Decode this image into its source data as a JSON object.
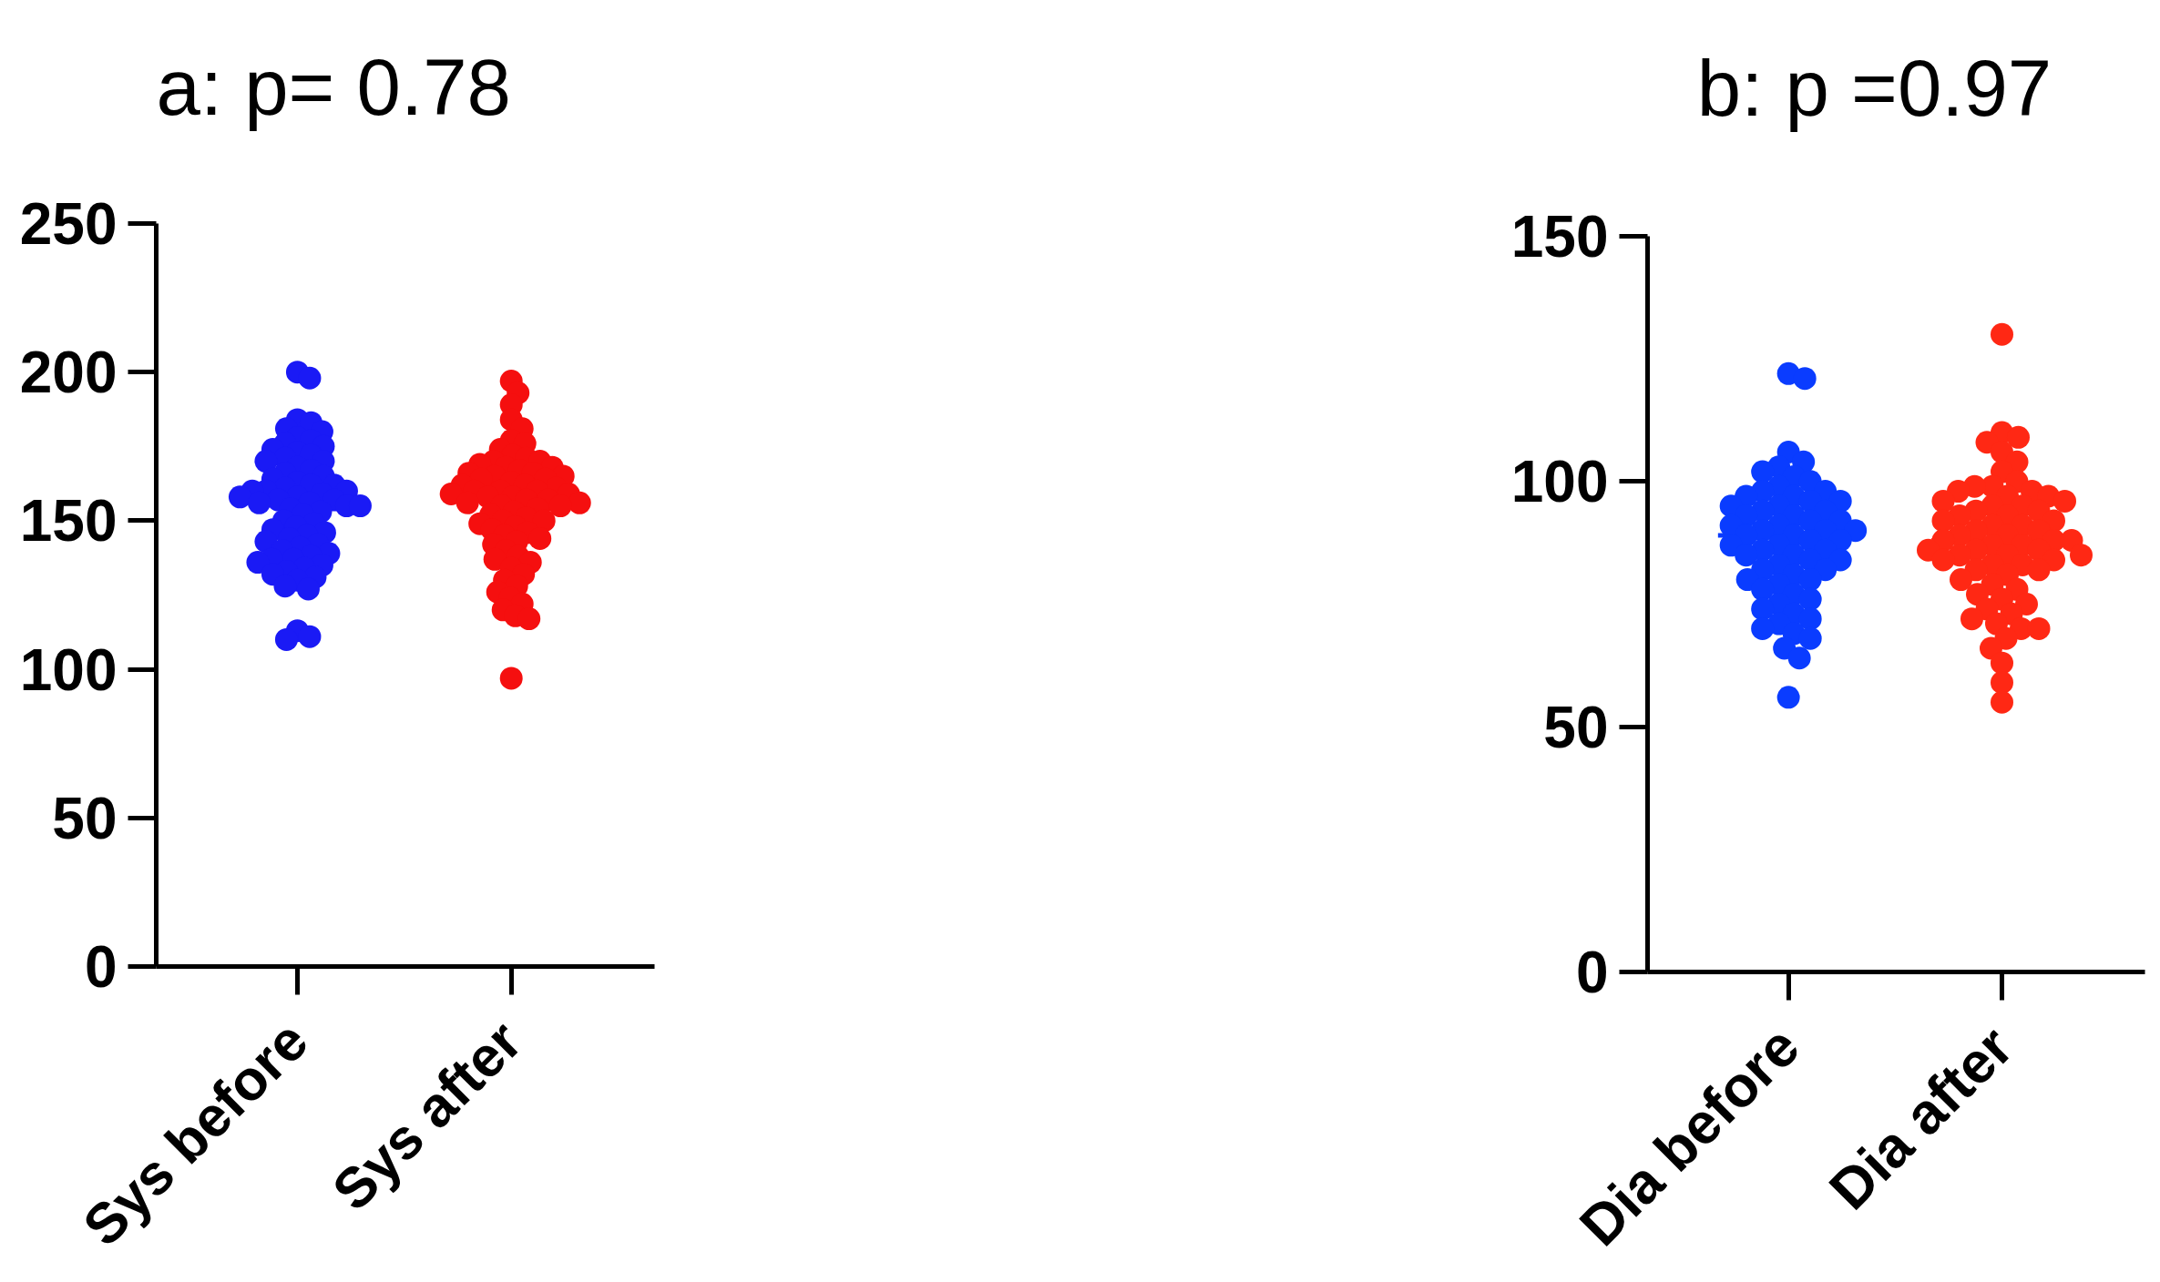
{
  "chart_data": [
    {
      "type": "scatter",
      "title": "a: p= 0.78",
      "categories": [
        "Sys before",
        "Sys after"
      ],
      "ylim": [
        0,
        250
      ],
      "yticks": [
        0,
        50,
        100,
        150,
        200,
        250
      ],
      "grid": false,
      "marker": "circle",
      "series": [
        {
          "color": "#1a1af5",
          "x": [
            "Sys before",
            "Sys before",
            "Sys before",
            "Sys before",
            "Sys before",
            "Sys before",
            "Sys before",
            "Sys before",
            "Sys before",
            "Sys before",
            "Sys before",
            "Sys before",
            "Sys before",
            "Sys before",
            "Sys before",
            "Sys before",
            "Sys before",
            "Sys before",
            "Sys before",
            "Sys before",
            "Sys before",
            "Sys before",
            "Sys before",
            "Sys before",
            "Sys before",
            "Sys before",
            "Sys before",
            "Sys before",
            "Sys before",
            "Sys before",
            "Sys before",
            "Sys before",
            "Sys before",
            "Sys before",
            "Sys before",
            "Sys before",
            "Sys before",
            "Sys before",
            "Sys before",
            "Sys before",
            "Sys before",
            "Sys before",
            "Sys before",
            "Sys before",
            "Sys before",
            "Sys before",
            "Sys before",
            "Sys before",
            "Sys before",
            "Sys before",
            "Sys before",
            "Sys before",
            "Sys before",
            "Sys before",
            "Sys before",
            "Sys before",
            "Sys before",
            "Sys before",
            "Sys before",
            "Sys before",
            "Sys before",
            "Sys before",
            "Sys before",
            "Sys before",
            "Sys before",
            "Sys before",
            "Sys before"
          ],
          "values": [
            200,
            198,
            184,
            183,
            181,
            180,
            178,
            177,
            176,
            175,
            174,
            173,
            172,
            171,
            170,
            170,
            168,
            167,
            166,
            165,
            164,
            163,
            162,
            162,
            161,
            160,
            160,
            160,
            159,
            158,
            158,
            157,
            157,
            156,
            156,
            155,
            155,
            154,
            153,
            152,
            150,
            149,
            148,
            147,
            146,
            145,
            144,
            143,
            142,
            141,
            140,
            139,
            138,
            137,
            137,
            136,
            135,
            134,
            133,
            132,
            131,
            130,
            128,
            127,
            113,
            111,
            110
          ]
        },
        {
          "color": "#f50f0f",
          "x": [
            "Sys after",
            "Sys after",
            "Sys after",
            "Sys after",
            "Sys after",
            "Sys after",
            "Sys after",
            "Sys after",
            "Sys after",
            "Sys after",
            "Sys after",
            "Sys after",
            "Sys after",
            "Sys after",
            "Sys after",
            "Sys after",
            "Sys after",
            "Sys after",
            "Sys after",
            "Sys after",
            "Sys after",
            "Sys after",
            "Sys after",
            "Sys after",
            "Sys after",
            "Sys after",
            "Sys after",
            "Sys after",
            "Sys after",
            "Sys after",
            "Sys after",
            "Sys after",
            "Sys after",
            "Sys after",
            "Sys after",
            "Sys after",
            "Sys after",
            "Sys after",
            "Sys after",
            "Sys after",
            "Sys after",
            "Sys after",
            "Sys after",
            "Sys after",
            "Sys after",
            "Sys after",
            "Sys after",
            "Sys after",
            "Sys after",
            "Sys after",
            "Sys after",
            "Sys after",
            "Sys after",
            "Sys after",
            "Sys after",
            "Sys after",
            "Sys after",
            "Sys after",
            "Sys after",
            "Sys after",
            "Sys after",
            "Sys after",
            "Sys after",
            "Sys after",
            "Sys after",
            "Sys after",
            "Sys after",
            "Sys after"
          ],
          "values": [
            197,
            193,
            189,
            184,
            181,
            177,
            176,
            174,
            172,
            171,
            170,
            170,
            169,
            168,
            168,
            167,
            166,
            166,
            165,
            165,
            164,
            164,
            163,
            162,
            162,
            161,
            160,
            160,
            160,
            159,
            159,
            158,
            158,
            157,
            157,
            156,
            156,
            155,
            155,
            154,
            153,
            152,
            151,
            150,
            150,
            149,
            148,
            147,
            146,
            145,
            144,
            143,
            142,
            140,
            138,
            137,
            136,
            134,
            132,
            130,
            128,
            126,
            124,
            122,
            120,
            118,
            117,
            97
          ]
        }
      ]
    },
    {
      "type": "scatter",
      "title": "b: p =0.97",
      "categories": [
        "Dia before",
        "Dia after"
      ],
      "ylim": [
        0,
        150
      ],
      "yticks": [
        0,
        50,
        100,
        150
      ],
      "grid": false,
      "marker": "circle",
      "ref_lines": [
        {
          "axis": "y",
          "value": 89,
          "color": "#0a3cff"
        },
        {
          "axis": "y",
          "value": 88,
          "color": "#ff2814"
        }
      ],
      "series": [
        {
          "color": "#0a3cff",
          "x": [
            "Dia before",
            "Dia before",
            "Dia before",
            "Dia before",
            "Dia before",
            "Dia before",
            "Dia before",
            "Dia before",
            "Dia before",
            "Dia before",
            "Dia before",
            "Dia before",
            "Dia before",
            "Dia before",
            "Dia before",
            "Dia before",
            "Dia before",
            "Dia before",
            "Dia before",
            "Dia before",
            "Dia before",
            "Dia before",
            "Dia before",
            "Dia before",
            "Dia before",
            "Dia before",
            "Dia before",
            "Dia before",
            "Dia before",
            "Dia before",
            "Dia before",
            "Dia before",
            "Dia before",
            "Dia before",
            "Dia before",
            "Dia before",
            "Dia before",
            "Dia before",
            "Dia before",
            "Dia before",
            "Dia before",
            "Dia before",
            "Dia before",
            "Dia before",
            "Dia before",
            "Dia before",
            "Dia before",
            "Dia before",
            "Dia before",
            "Dia before",
            "Dia before",
            "Dia before",
            "Dia before",
            "Dia before",
            "Dia before",
            "Dia before",
            "Dia before",
            "Dia before",
            "Dia before",
            "Dia before",
            "Dia before"
          ],
          "values": [
            122,
            121,
            106,
            104,
            103,
            102,
            101,
            100,
            99,
            98,
            98,
            97,
            97,
            96,
            96,
            95,
            95,
            94,
            94,
            93,
            93,
            92,
            92,
            91,
            91,
            90,
            90,
            90,
            89,
            89,
            88,
            88,
            87,
            87,
            86,
            86,
            85,
            85,
            84,
            84,
            83,
            82,
            82,
            81,
            80,
            80,
            79,
            78,
            77,
            76,
            75,
            74,
            73,
            72,
            71,
            70,
            69,
            68,
            66,
            64,
            56
          ]
        },
        {
          "color": "#ff2814",
          "x": [
            "Dia after",
            "Dia after",
            "Dia after",
            "Dia after",
            "Dia after",
            "Dia after",
            "Dia after",
            "Dia after",
            "Dia after",
            "Dia after",
            "Dia after",
            "Dia after",
            "Dia after",
            "Dia after",
            "Dia after",
            "Dia after",
            "Dia after",
            "Dia after",
            "Dia after",
            "Dia after",
            "Dia after",
            "Dia after",
            "Dia after",
            "Dia after",
            "Dia after",
            "Dia after",
            "Dia after",
            "Dia after",
            "Dia after",
            "Dia after",
            "Dia after",
            "Dia after",
            "Dia after",
            "Dia after",
            "Dia after",
            "Dia after",
            "Dia after",
            "Dia after",
            "Dia after",
            "Dia after",
            "Dia after",
            "Dia after",
            "Dia after",
            "Dia after",
            "Dia after",
            "Dia after",
            "Dia after",
            "Dia after",
            "Dia after",
            "Dia after",
            "Dia after",
            "Dia after",
            "Dia after",
            "Dia after",
            "Dia after",
            "Dia after",
            "Dia after",
            "Dia after",
            "Dia after",
            "Dia after",
            "Dia after",
            "Dia after",
            "Dia after",
            "Dia after",
            "Dia after"
          ],
          "values": [
            130,
            110,
            109,
            108,
            106,
            104,
            102,
            100,
            99,
            99,
            98,
            98,
            97,
            97,
            96,
            96,
            95,
            95,
            94,
            94,
            93,
            93,
            92,
            92,
            91,
            91,
            90,
            90,
            89,
            89,
            88,
            88,
            88,
            87,
            87,
            86,
            86,
            86,
            85,
            85,
            85,
            84,
            84,
            83,
            83,
            82,
            82,
            81,
            80,
            79,
            78,
            77,
            76,
            75,
            74,
            73,
            72,
            71,
            70,
            70,
            68,
            66,
            63,
            59,
            55
          ]
        }
      ]
    }
  ]
}
